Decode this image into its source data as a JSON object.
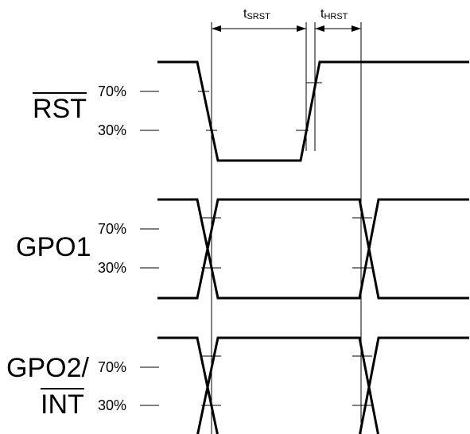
{
  "signals": {
    "rst": {
      "name": "RST",
      "pct_high": "70%",
      "pct_low": "30%"
    },
    "gpo1": {
      "name": "GPO1",
      "pct_high": "70%",
      "pct_low": "30%"
    },
    "gpo2": {
      "name_line1": "GPO2/",
      "name_line2": "INT",
      "pct_high": "70%",
      "pct_low": "30%"
    }
  },
  "timing": {
    "setup": {
      "base": "t",
      "sub": "SRST"
    },
    "hold": {
      "base": "t",
      "sub": "HRST"
    }
  }
}
